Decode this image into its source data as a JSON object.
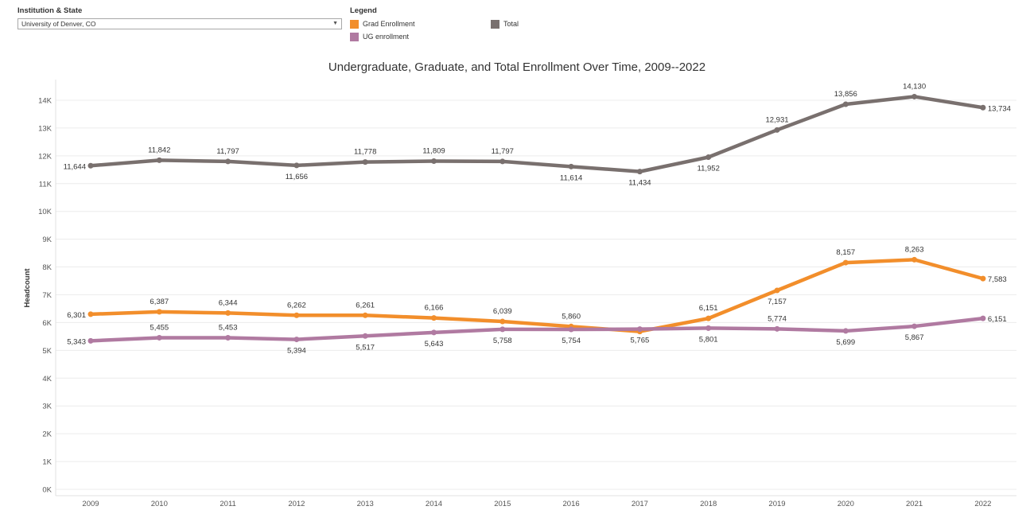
{
  "filter": {
    "label": "Institution & State",
    "value": "University of Denver, CO"
  },
  "legend": {
    "title": "Legend",
    "items": [
      {
        "label": "Grad Enrollment",
        "color": "#F28E2B"
      },
      {
        "label": "UG enrollment",
        "color": "#B07AA1"
      },
      {
        "label": "Total",
        "color": "#79706E"
      }
    ]
  },
  "chart_data": {
    "type": "line",
    "title": "Undergraduate, Graduate, and Total Enrollment Over Time, 2009--2022",
    "xlabel": "",
    "ylabel": "Headcount",
    "ylim": [
      0,
      14500
    ],
    "yticks": [
      "0K",
      "1K",
      "2K",
      "3K",
      "4K",
      "5K",
      "6K",
      "7K",
      "8K",
      "9K",
      "10K",
      "11K",
      "12K",
      "13K",
      "14K"
    ],
    "x": [
      "2009",
      "2010",
      "2011",
      "2012",
      "2013",
      "2014",
      "2015",
      "2016",
      "2017",
      "2018",
      "2019",
      "2020",
      "2021",
      "2022"
    ],
    "grid": true,
    "series": [
      {
        "name": "Total",
        "color": "#79706E",
        "values": [
          11644,
          11842,
          11797,
          11656,
          11778,
          11809,
          11797,
          11614,
          11434,
          11952,
          12931,
          13856,
          14130,
          13734
        ],
        "labels": [
          "11,644",
          "11,842",
          "11,797",
          "11,656",
          "11,778",
          "11,809",
          "11,797",
          "11,614",
          "11,434",
          "11,952",
          "12,931",
          "13,856",
          "14,130",
          "13,734"
        ]
      },
      {
        "name": "Grad Enrollment",
        "color": "#F28E2B",
        "values": [
          6301,
          6387,
          6344,
          6262,
          6261,
          6166,
          6039,
          5860,
          5680,
          6151,
          7157,
          8157,
          8263,
          7583
        ],
        "labels": [
          "6,301",
          "6,387",
          "6,344",
          "6,262",
          "6,261",
          "6,166",
          "6,039",
          "5,860",
          "",
          "6,151",
          "7,157",
          "8,157",
          "8,263",
          "7,583"
        ]
      },
      {
        "name": "UG enrollment",
        "color": "#B07AA1",
        "values": [
          5343,
          5455,
          5453,
          5394,
          5517,
          5643,
          5758,
          5754,
          5765,
          5801,
          5774,
          5699,
          5867,
          6151
        ],
        "labels": [
          "5,343",
          "5,455",
          "5,453",
          "5,394",
          "5,517",
          "5,643",
          "5,758",
          "5,754",
          "5,765",
          "5,801",
          "5,774",
          "5,699",
          "5,867",
          "6,151"
        ]
      }
    ]
  }
}
